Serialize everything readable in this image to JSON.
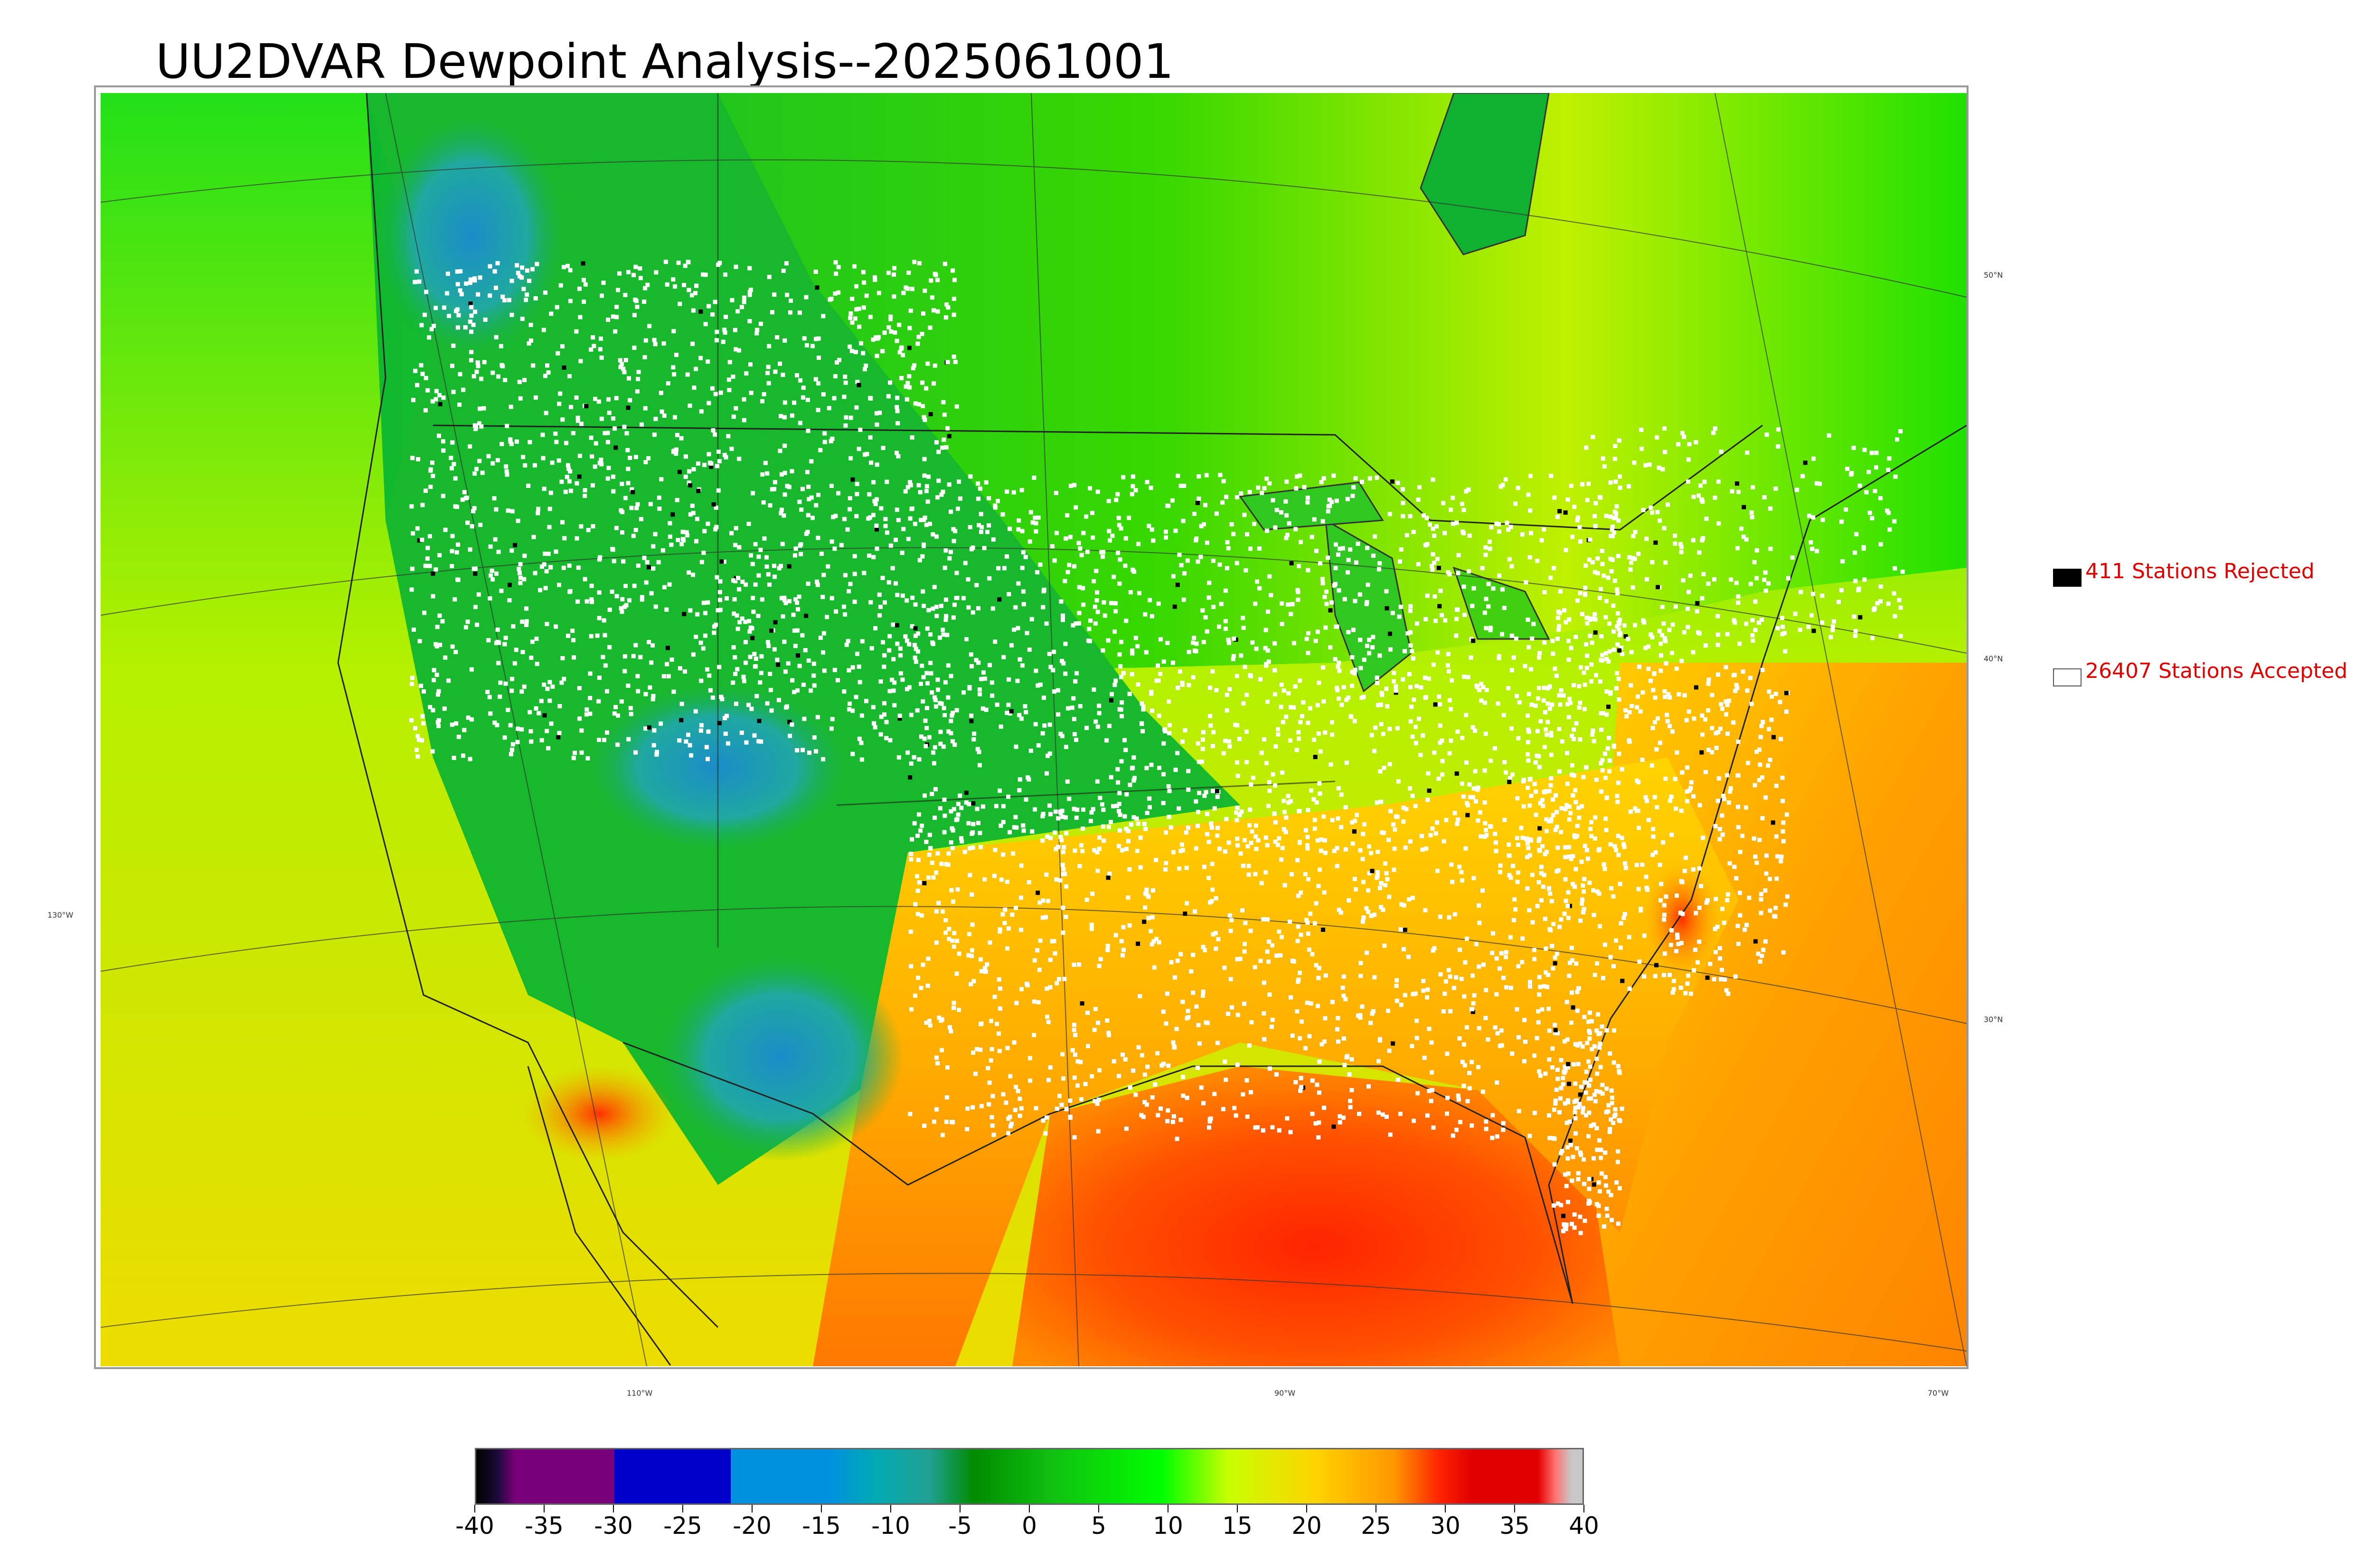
{
  "title": "UU2DVAR Dewpoint Analysis--2025061001",
  "legend": {
    "rejected": {
      "label": "411 Stations Rejected",
      "swatch_color": "#000000"
    },
    "accepted": {
      "label": "26407 Stations Accepted",
      "swatch_color": "#ffffff"
    }
  },
  "latitude_labels": [
    "50°N",
    "40°N",
    "30°N"
  ],
  "longitude_labels": [
    "130°W",
    "110°W",
    "90°W",
    "70°W"
  ],
  "colorbar": {
    "ticks": [
      "-40",
      "-35",
      "-30",
      "-25",
      "-20",
      "-15",
      "-10",
      "-5",
      "0",
      "5",
      "10",
      "15",
      "20",
      "25",
      "30",
      "35",
      "40"
    ],
    "colors": [
      "#000000",
      "#1e0a3c",
      "#780078",
      "#0000c8",
      "#0090e0",
      "#00aab4",
      "#008c00",
      "#00ff00",
      "#c8ff00",
      "#ffd200",
      "#ff9600",
      "#ff0000",
      "#e10000",
      "#ff8c8c",
      "#c8c8c8"
    ]
  },
  "colors": {
    "ocean_west": "#c8f000",
    "ocean_east": "#ff9a00",
    "gulf": "#ff3a00",
    "land_north": "#00c800",
    "mountain_dry": "#22b4a0"
  }
}
